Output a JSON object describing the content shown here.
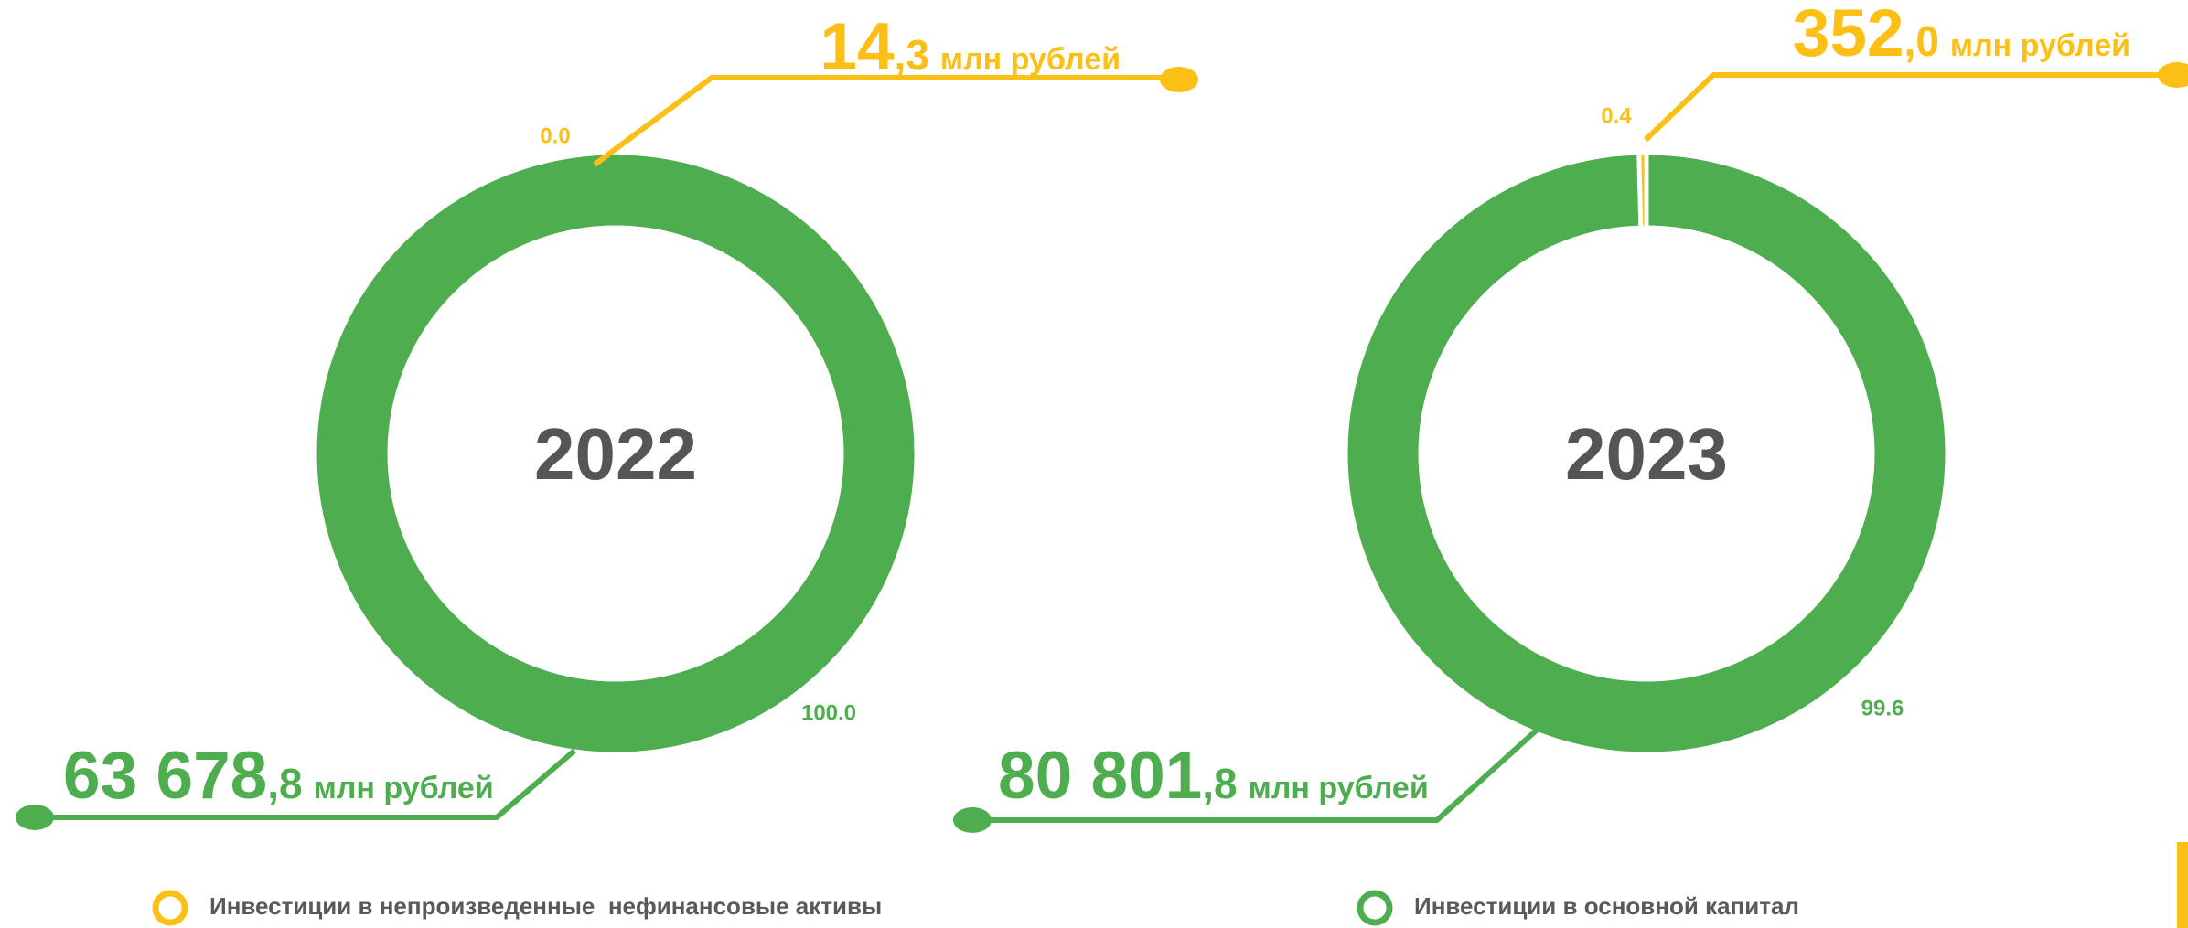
{
  "chart_data": [
    {
      "type": "donut",
      "title": "2022",
      "categories": [
        "Инвестиции в непроизведенные  нефинансовые активы",
        "Инвестиции в основной капитал"
      ],
      "values": [
        0.0,
        100.0
      ],
      "value_labels": [
        "0.0",
        "100.0"
      ],
      "colors": [
        "#FBBF16",
        "#4EAE4F"
      ],
      "amounts": [
        {
          "main": "14",
          "decimal": ",3",
          "unit": "млн рублей"
        },
        {
          "main": "63 678",
          "decimal": ",8",
          "unit": "млн рублей"
        }
      ]
    },
    {
      "type": "donut",
      "title": "2023",
      "categories": [
        "Инвестиции в непроизведенные  нефинансовые активы",
        "Инвестиции в основной капитал"
      ],
      "values": [
        0.4,
        99.6
      ],
      "value_labels": [
        "0.4",
        "99.6"
      ],
      "colors": [
        "#FBBF16",
        "#4EAE4F"
      ],
      "amounts": [
        {
          "main": "352",
          "decimal": ",0",
          "unit": "млн рублей"
        },
        {
          "main": "80 801",
          "decimal": ",8",
          "unit": "млн рублей"
        }
      ]
    }
  ]
}
